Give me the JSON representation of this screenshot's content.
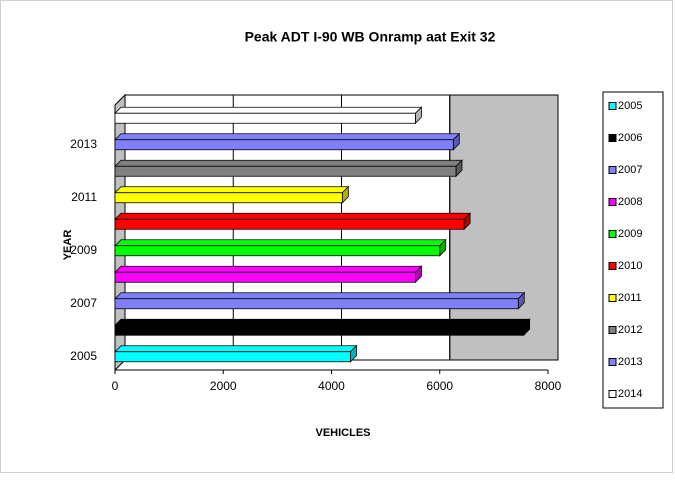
{
  "chart_data": {
    "type": "bar",
    "orientation": "horizontal",
    "title": "Peak ADT I-90 WB Onramp aat Exit 32",
    "x_label": "VEHICLES",
    "y_label": "YEAR",
    "categories": [
      "2005",
      "2006",
      "2007",
      "2008",
      "2009",
      "2010",
      "2011",
      "2012",
      "2013",
      "2014"
    ],
    "values": [
      4350,
      7550,
      7450,
      5550,
      6000,
      6450,
      4200,
      6300,
      6250,
      5550
    ],
    "colors": [
      "#00ffff",
      "#000000",
      "#8080ff",
      "#ff00ff",
      "#00ff00",
      "#ff0000",
      "#ffff00",
      "#808080",
      "#8080ff",
      "#ffffff"
    ],
    "xlim": [
      0,
      8000
    ],
    "xticks": [
      0,
      2000,
      4000,
      6000,
      8000
    ],
    "grid": true,
    "legend": "right"
  }
}
